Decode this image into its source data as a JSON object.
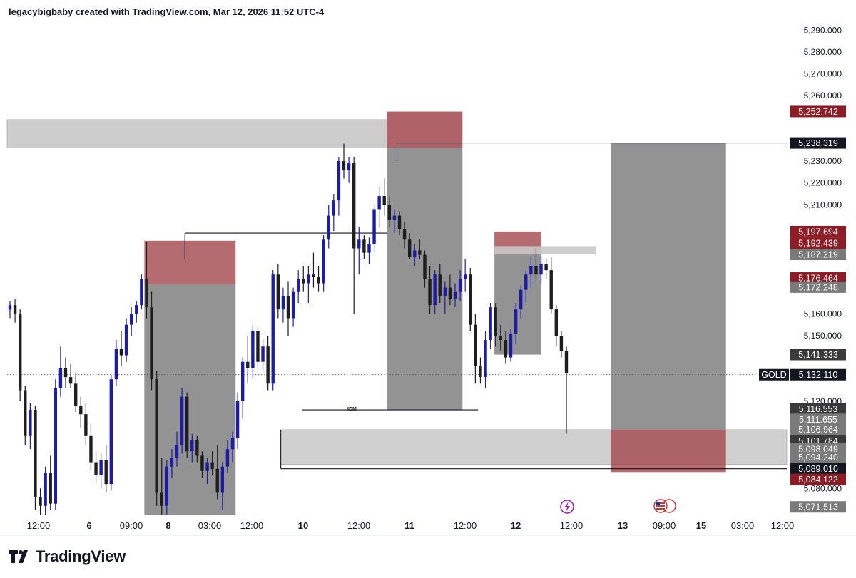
{
  "header": {
    "title": "legacybigbaby created with TradingView.com, Mar 12, 2026 11:52 UTC-4"
  },
  "brand": {
    "name": "TradingView"
  },
  "colors": {
    "bull": "#1c1ca8",
    "bear": "#1e1e1e",
    "supply": "#a1474e",
    "box": "#808080",
    "zone": "#c8c8c8"
  },
  "chart_data": {
    "type": "candlestick",
    "symbol": "GOLD",
    "last_price": "5,132.110",
    "y_axis": {
      "min": 5068,
      "max": 5296,
      "ticks": [
        "5,290.000",
        "5,280.000",
        "5,270.000",
        "5,260.000",
        "5,230.000",
        "5,220.000",
        "5,210.000",
        "5,160.000",
        "5,150.000",
        "5,120.000",
        "5,080.000"
      ],
      "tick_values": [
        5290,
        5280,
        5270,
        5260,
        5230,
        5220,
        5210,
        5160,
        5150,
        5120,
        5080
      ]
    },
    "x_axis": {
      "ticks": [
        {
          "label": "12:00",
          "bold": false
        },
        {
          "label": "6",
          "bold": true
        },
        {
          "label": "09:00",
          "bold": false
        },
        {
          "label": "8",
          "bold": true
        },
        {
          "label": "03:00",
          "bold": false
        },
        {
          "label": "12:00",
          "bold": false
        },
        {
          "label": "10",
          "bold": true
        },
        {
          "label": "12:00",
          "bold": false
        },
        {
          "label": "11",
          "bold": true
        },
        {
          "label": "12:00",
          "bold": false
        },
        {
          "label": "12",
          "bold": true
        },
        {
          "label": "12:00",
          "bold": false
        },
        {
          "label": "13",
          "bold": true
        },
        {
          "label": "09:00",
          "bold": false
        },
        {
          "label": "15",
          "bold": true
        },
        {
          "label": "03:00",
          "bold": false
        },
        {
          "label": "12:00",
          "bold": false
        }
      ]
    },
    "price_tags": [
      {
        "value": "5,252.742",
        "price": 5252.742,
        "style": "red"
      },
      {
        "value": "5,238.319",
        "price": 5238.319,
        "style": "black"
      },
      {
        "value": "5,197.694",
        "price": 5197.694,
        "style": "red"
      },
      {
        "value": "5,192.439",
        "price": 5192.439,
        "style": "red"
      },
      {
        "value": "5,187.219",
        "price": 5187.219,
        "style": "gray"
      },
      {
        "value": "5,176.464",
        "price": 5176.464,
        "style": "red"
      },
      {
        "value": "5,172.248",
        "price": 5172.248,
        "style": "gray"
      },
      {
        "value": "5,141.333",
        "price": 5141.333,
        "style": "dark"
      },
      {
        "value": "5,132.110",
        "price": 5132.11,
        "style": "black"
      },
      {
        "value": "5,116.553",
        "price": 5116.553,
        "style": "dark"
      },
      {
        "value": "5,111.655",
        "price": 5111.655,
        "style": "gray"
      },
      {
        "value": "5,106.964",
        "price": 5106.964,
        "style": "gray"
      },
      {
        "value": "5,101.784",
        "price": 5101.784,
        "style": "dark"
      },
      {
        "value": "5,098.049",
        "price": 5098.049,
        "style": "gray"
      },
      {
        "value": "5,094.240",
        "price": 5094.24,
        "style": "gray"
      },
      {
        "value": "5,089.010",
        "price": 5089.01,
        "style": "black"
      },
      {
        "value": "5,084.122",
        "price": 5084.122,
        "style": "red"
      },
      {
        "value": "5,071.513",
        "price": 5071.513,
        "style": "gray"
      }
    ],
    "annotations": [
      {
        "text": "IDM",
        "price": 5116
      }
    ],
    "zones": [
      {
        "kind": "supply",
        "x0": 0,
        "x1": 48.7,
        "top": 5249,
        "bottom": 5236
      },
      {
        "kind": "supply-box",
        "x0": 48.7,
        "x1": 58.4,
        "top": 5252.7,
        "bottom": 5236
      },
      {
        "kind": "dark-box",
        "x0": 48.7,
        "x1": 58.4,
        "top": 5236,
        "bottom": 5116
      },
      {
        "kind": "demand",
        "x0": 35.1,
        "x1": 100,
        "top": 5106.9,
        "bottom": 5091
      },
      {
        "kind": "red-box",
        "x0": 17.6,
        "x1": 29.3,
        "top": 5193.5,
        "bottom": 5173.5
      },
      {
        "kind": "dark-box",
        "x0": 17.6,
        "x1": 29.3,
        "top": 5173.5,
        "bottom": 5068
      },
      {
        "kind": "red-box",
        "x0": 62.5,
        "x1": 68.5,
        "top": 5197.7,
        "bottom": 5187.2
      },
      {
        "kind": "dark-box",
        "x0": 62.5,
        "x1": 68.5,
        "top": 5187.2,
        "bottom": 5141.3
      },
      {
        "kind": "zone",
        "x0": 62.5,
        "x1": 75.5,
        "top": 5191,
        "bottom": 5187.2
      },
      {
        "kind": "dark-box",
        "x0": 77.4,
        "x1": 92.2,
        "top": 5238.3,
        "bottom": 5106.9
      },
      {
        "kind": "red-box",
        "x0": 77.4,
        "x1": 92.2,
        "top": 5106.9,
        "bottom": 5087.5
      }
    ],
    "levels": [
      {
        "price": 5238.319,
        "x0": 50,
        "x1": 100
      },
      {
        "price": 5089.01,
        "x0": 35.1,
        "x1": 100
      },
      {
        "price": 5197,
        "x0": 22.8,
        "x1": 48.7
      },
      {
        "price": 5116,
        "x0": 37.8,
        "x1": 60.4
      }
    ],
    "candles": [
      {
        "o": 5162,
        "h": 5166,
        "l": 5158,
        "c": 5164
      },
      {
        "o": 5164,
        "h": 5167,
        "l": 5156,
        "c": 5160
      },
      {
        "o": 5160,
        "h": 5162,
        "l": 5120,
        "c": 5125
      },
      {
        "o": 5125,
        "h": 5127,
        "l": 5100,
        "c": 5104
      },
      {
        "o": 5104,
        "h": 5119,
        "l": 5098,
        "c": 5116
      },
      {
        "o": 5116,
        "h": 5118,
        "l": 5070,
        "c": 5076
      },
      {
        "o": 5076,
        "h": 5080,
        "l": 5068,
        "c": 5072
      },
      {
        "o": 5072,
        "h": 5090,
        "l": 5068,
        "c": 5087
      },
      {
        "o": 5087,
        "h": 5095,
        "l": 5070,
        "c": 5073
      },
      {
        "o": 5073,
        "h": 5130,
        "l": 5070,
        "c": 5126
      },
      {
        "o": 5126,
        "h": 5145,
        "l": 5122,
        "c": 5135
      },
      {
        "o": 5135,
        "h": 5140,
        "l": 5126,
        "c": 5131
      },
      {
        "o": 5131,
        "h": 5137,
        "l": 5126,
        "c": 5128
      },
      {
        "o": 5128,
        "h": 5133,
        "l": 5115,
        "c": 5118
      },
      {
        "o": 5118,
        "h": 5122,
        "l": 5108,
        "c": 5114
      },
      {
        "o": 5114,
        "h": 5119,
        "l": 5100,
        "c": 5104
      },
      {
        "o": 5104,
        "h": 5110,
        "l": 5088,
        "c": 5092
      },
      {
        "o": 5092,
        "h": 5097,
        "l": 5082,
        "c": 5086
      },
      {
        "o": 5086,
        "h": 5096,
        "l": 5080,
        "c": 5093
      },
      {
        "o": 5093,
        "h": 5100,
        "l": 5078,
        "c": 5082
      },
      {
        "o": 5082,
        "h": 5132,
        "l": 5079,
        "c": 5130
      },
      {
        "o": 5130,
        "h": 5148,
        "l": 5127,
        "c": 5144
      },
      {
        "o": 5144,
        "h": 5152,
        "l": 5136,
        "c": 5141
      },
      {
        "o": 5141,
        "h": 5158,
        "l": 5138,
        "c": 5155
      },
      {
        "o": 5155,
        "h": 5163,
        "l": 5150,
        "c": 5160
      },
      {
        "o": 5160,
        "h": 5166,
        "l": 5156,
        "c": 5164
      },
      {
        "o": 5164,
        "h": 5178,
        "l": 5162,
        "c": 5176
      },
      {
        "o": 5176,
        "h": 5193,
        "l": 5158,
        "c": 5163
      },
      {
        "o": 5163,
        "h": 5170,
        "l": 5125,
        "c": 5130
      },
      {
        "o": 5130,
        "h": 5134,
        "l": 5072,
        "c": 5078
      },
      {
        "o": 5078,
        "h": 5094,
        "l": 5068,
        "c": 5072
      },
      {
        "o": 5072,
        "h": 5093,
        "l": 5068,
        "c": 5090
      },
      {
        "o": 5090,
        "h": 5098,
        "l": 5085,
        "c": 5094
      },
      {
        "o": 5094,
        "h": 5106,
        "l": 5090,
        "c": 5100
      },
      {
        "o": 5100,
        "h": 5126,
        "l": 5096,
        "c": 5122
      },
      {
        "o": 5122,
        "h": 5124,
        "l": 5094,
        "c": 5097
      },
      {
        "o": 5097,
        "h": 5105,
        "l": 5092,
        "c": 5102
      },
      {
        "o": 5102,
        "h": 5104,
        "l": 5092,
        "c": 5095
      },
      {
        "o": 5095,
        "h": 5097,
        "l": 5085,
        "c": 5088
      },
      {
        "o": 5088,
        "h": 5094,
        "l": 5082,
        "c": 5092
      },
      {
        "o": 5092,
        "h": 5097,
        "l": 5086,
        "c": 5089
      },
      {
        "o": 5089,
        "h": 5100,
        "l": 5075,
        "c": 5078
      },
      {
        "o": 5078,
        "h": 5092,
        "l": 5070,
        "c": 5090
      },
      {
        "o": 5090,
        "h": 5102,
        "l": 5087,
        "c": 5098
      },
      {
        "o": 5098,
        "h": 5106,
        "l": 5092,
        "c": 5103
      },
      {
        "o": 5103,
        "h": 5124,
        "l": 5098,
        "c": 5120
      },
      {
        "o": 5120,
        "h": 5140,
        "l": 5112,
        "c": 5138
      },
      {
        "o": 5138,
        "h": 5150,
        "l": 5128,
        "c": 5135
      },
      {
        "o": 5135,
        "h": 5155,
        "l": 5130,
        "c": 5152
      },
      {
        "o": 5152,
        "h": 5154,
        "l": 5135,
        "c": 5138
      },
      {
        "o": 5138,
        "h": 5148,
        "l": 5134,
        "c": 5145
      },
      {
        "o": 5145,
        "h": 5150,
        "l": 5125,
        "c": 5128
      },
      {
        "o": 5128,
        "h": 5180,
        "l": 5125,
        "c": 5178
      },
      {
        "o": 5178,
        "h": 5183,
        "l": 5158,
        "c": 5162
      },
      {
        "o": 5162,
        "h": 5172,
        "l": 5156,
        "c": 5168
      },
      {
        "o": 5168,
        "h": 5175,
        "l": 5150,
        "c": 5158
      },
      {
        "o": 5158,
        "h": 5172,
        "l": 5154,
        "c": 5170
      },
      {
        "o": 5170,
        "h": 5180,
        "l": 5165,
        "c": 5176
      },
      {
        "o": 5176,
        "h": 5182,
        "l": 5170,
        "c": 5174
      },
      {
        "o": 5174,
        "h": 5182,
        "l": 5165,
        "c": 5178
      },
      {
        "o": 5178,
        "h": 5188,
        "l": 5172,
        "c": 5177
      },
      {
        "o": 5177,
        "h": 5182,
        "l": 5170,
        "c": 5174
      },
      {
        "o": 5174,
        "h": 5196,
        "l": 5170,
        "c": 5194
      },
      {
        "o": 5194,
        "h": 5210,
        "l": 5190,
        "c": 5205
      },
      {
        "o": 5205,
        "h": 5215,
        "l": 5198,
        "c": 5212
      },
      {
        "o": 5212,
        "h": 5232,
        "l": 5205,
        "c": 5230
      },
      {
        "o": 5230,
        "h": 5238,
        "l": 5222,
        "c": 5226
      },
      {
        "o": 5226,
        "h": 5232,
        "l": 5220,
        "c": 5229
      },
      {
        "o": 5229,
        "h": 5232,
        "l": 5160,
        "c": 5190
      },
      {
        "o": 5190,
        "h": 5200,
        "l": 5178,
        "c": 5194
      },
      {
        "o": 5194,
        "h": 5196,
        "l": 5185,
        "c": 5188
      },
      {
        "o": 5188,
        "h": 5195,
        "l": 5183,
        "c": 5192
      },
      {
        "o": 5192,
        "h": 5210,
        "l": 5188,
        "c": 5208
      },
      {
        "o": 5208,
        "h": 5218,
        "l": 5200,
        "c": 5214
      },
      {
        "o": 5214,
        "h": 5222,
        "l": 5205,
        "c": 5210
      },
      {
        "o": 5210,
        "h": 5214,
        "l": 5200,
        "c": 5203
      },
      {
        "o": 5203,
        "h": 5208,
        "l": 5197,
        "c": 5205
      },
      {
        "o": 5205,
        "h": 5207,
        "l": 5196,
        "c": 5199
      },
      {
        "o": 5199,
        "h": 5202,
        "l": 5190,
        "c": 5194
      },
      {
        "o": 5194,
        "h": 5197,
        "l": 5185,
        "c": 5186
      },
      {
        "o": 5186,
        "h": 5192,
        "l": 5182,
        "c": 5189
      },
      {
        "o": 5189,
        "h": 5194,
        "l": 5185,
        "c": 5187
      },
      {
        "o": 5187,
        "h": 5189,
        "l": 5172,
        "c": 5176
      },
      {
        "o": 5176,
        "h": 5182,
        "l": 5160,
        "c": 5164
      },
      {
        "o": 5164,
        "h": 5180,
        "l": 5160,
        "c": 5178
      },
      {
        "o": 5178,
        "h": 5183,
        "l": 5165,
        "c": 5168
      },
      {
        "o": 5168,
        "h": 5175,
        "l": 5160,
        "c": 5172
      },
      {
        "o": 5172,
        "h": 5178,
        "l": 5164,
        "c": 5167
      },
      {
        "o": 5167,
        "h": 5174,
        "l": 5163,
        "c": 5170
      },
      {
        "o": 5170,
        "h": 5180,
        "l": 5166,
        "c": 5176
      },
      {
        "o": 5176,
        "h": 5185,
        "l": 5170,
        "c": 5178
      },
      {
        "o": 5178,
        "h": 5181,
        "l": 5152,
        "c": 5155
      },
      {
        "o": 5155,
        "h": 5160,
        "l": 5128,
        "c": 5136
      },
      {
        "o": 5136,
        "h": 5140,
        "l": 5128,
        "c": 5131
      },
      {
        "o": 5131,
        "h": 5152,
        "l": 5126,
        "c": 5148
      },
      {
        "o": 5148,
        "h": 5165,
        "l": 5144,
        "c": 5163
      },
      {
        "o": 5163,
        "h": 5165,
        "l": 5145,
        "c": 5150
      },
      {
        "o": 5150,
        "h": 5155,
        "l": 5143,
        "c": 5148
      },
      {
        "o": 5148,
        "h": 5152,
        "l": 5137,
        "c": 5140
      },
      {
        "o": 5140,
        "h": 5153,
        "l": 5138,
        "c": 5151
      },
      {
        "o": 5151,
        "h": 5165,
        "l": 5146,
        "c": 5162
      },
      {
        "o": 5162,
        "h": 5173,
        "l": 5158,
        "c": 5171
      },
      {
        "o": 5171,
        "h": 5180,
        "l": 5165,
        "c": 5178
      },
      {
        "o": 5178,
        "h": 5186,
        "l": 5172,
        "c": 5182
      },
      {
        "o": 5182,
        "h": 5190,
        "l": 5175,
        "c": 5178
      },
      {
        "o": 5178,
        "h": 5186,
        "l": 5174,
        "c": 5183
      },
      {
        "o": 5183,
        "h": 5185,
        "l": 5176,
        "c": 5180
      },
      {
        "o": 5180,
        "h": 5186,
        "l": 5160,
        "c": 5162
      },
      {
        "o": 5162,
        "h": 5164,
        "l": 5145,
        "c": 5150
      },
      {
        "o": 5150,
        "h": 5152,
        "l": 5140,
        "c": 5143
      },
      {
        "o": 5143,
        "h": 5145,
        "l": 5105,
        "c": 5133
      }
    ]
  }
}
